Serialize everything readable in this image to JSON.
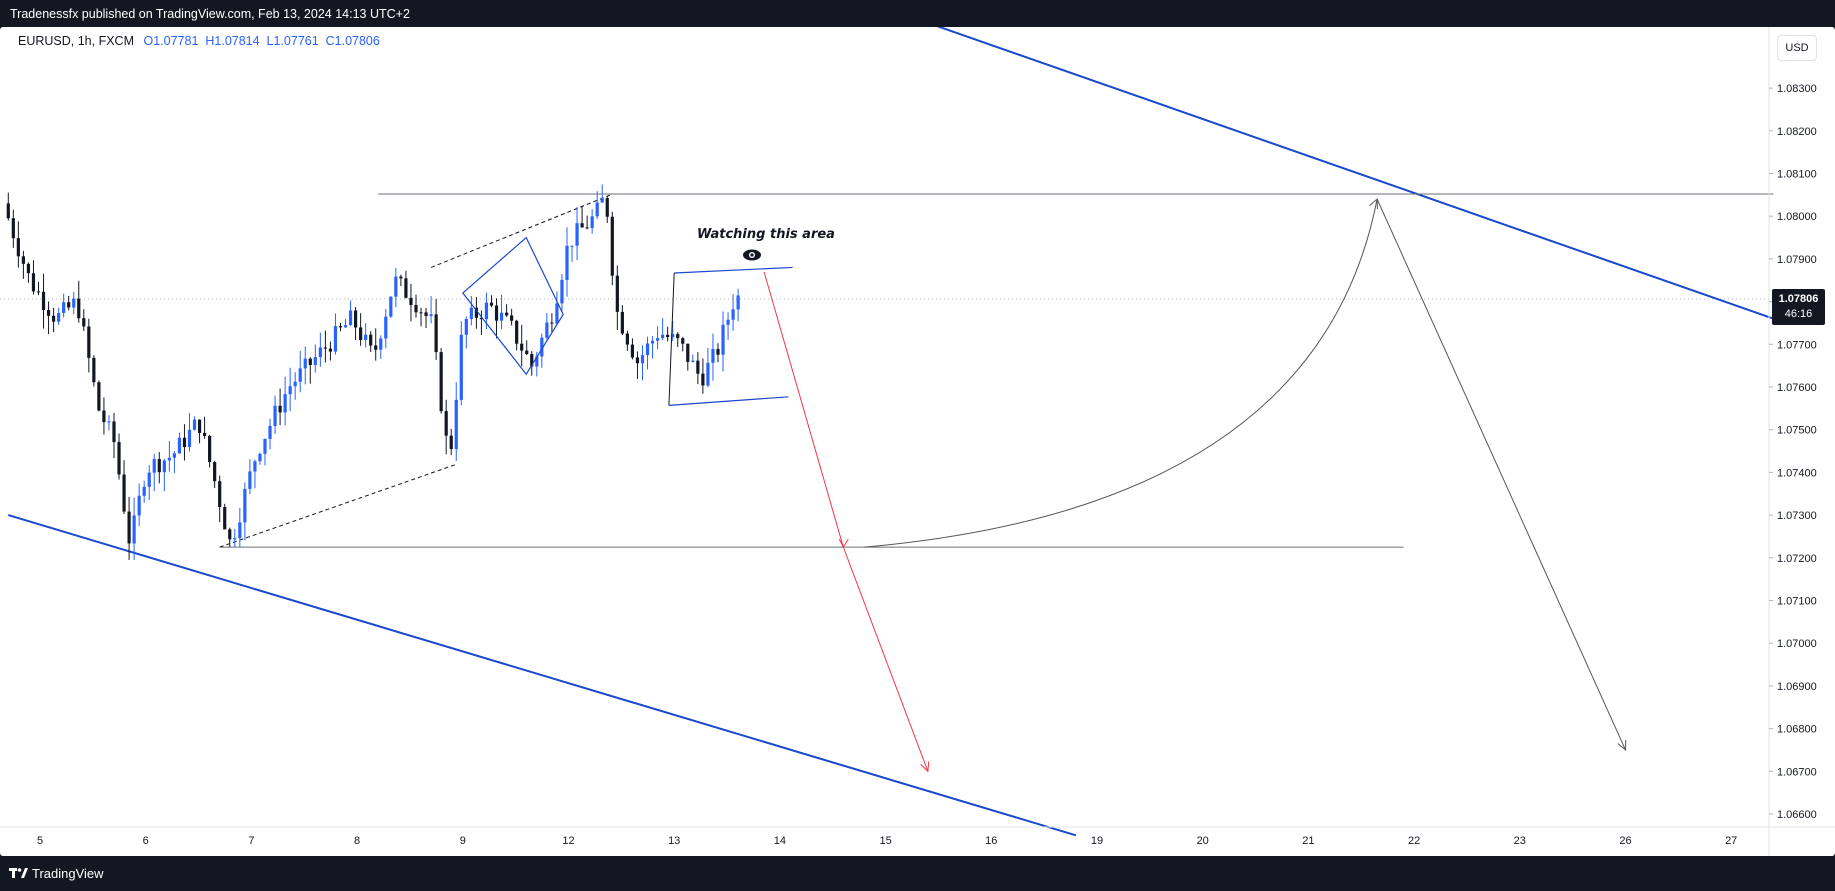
{
  "header": {
    "published": "Tradenessfx published on TradingView.com, Feb 13, 2024 14:13 UTC+2"
  },
  "legend": {
    "symbol": "EURUSD, 1h, FXCM",
    "open_label": "O",
    "open": "1.07781",
    "high_label": "H",
    "high": "1.07814",
    "low_label": "L",
    "low": "1.07761",
    "close_label": "C",
    "close": "1.07806"
  },
  "currency_button": "USD",
  "last_price": {
    "price": "1.07806",
    "countdown": "46:16"
  },
  "annotation": {
    "text": "Watching  this area",
    "icon": "eye-icon"
  },
  "footer": {
    "brand": "TradingView",
    "logo_icon": "tradingview-logo-icon"
  },
  "colors": {
    "up": "#2962ff",
    "down": "#131722",
    "trend_line": "#1848cc",
    "forecast_down": "#f23645",
    "forecast_path": "#555555",
    "background": "#131722"
  },
  "chart_data": {
    "type": "candlestick",
    "symbol": "EURUSD",
    "timeframe": "1h",
    "yaxis": {
      "ticks": [
        "1.08300",
        "1.08200",
        "1.08100",
        "1.08000",
        "1.07900",
        "1.07800",
        "1.07700",
        "1.07600",
        "1.07500",
        "1.07400",
        "1.07300",
        "1.07200",
        "1.07100",
        "1.07000",
        "1.06900",
        "1.06800",
        "1.06700",
        "1.06600"
      ],
      "range": [
        1.0655,
        1.0845
      ]
    },
    "xaxis": {
      "ticks": [
        {
          "label": "5",
          "day": 0
        },
        {
          "label": "6",
          "day": 1
        },
        {
          "label": "7",
          "day": 2
        },
        {
          "label": "8",
          "day": 3
        },
        {
          "label": "9",
          "day": 4
        },
        {
          "label": "12",
          "day": 5
        },
        {
          "label": "13",
          "day": 6
        },
        {
          "label": "14",
          "day": 7
        },
        {
          "label": "15",
          "day": 8
        },
        {
          "label": "16",
          "day": 9
        },
        {
          "label": "19",
          "day": 10
        },
        {
          "label": "20",
          "day": 11
        },
        {
          "label": "21",
          "day": 12
        },
        {
          "label": "22",
          "day": 13
        },
        {
          "label": "23",
          "day": 14
        },
        {
          "label": "26",
          "day": 15
        },
        {
          "label": "27",
          "day": 16
        }
      ]
    },
    "series": {
      "name": "EURUSD",
      "points": [
        {
          "day": -0.3,
          "price": 1.0803
        },
        {
          "day": -0.05,
          "price": 1.0785
        },
        {
          "day": 0.2,
          "price": 1.0776
        },
        {
          "day": 0.4,
          "price": 1.078
        },
        {
          "day": 0.6,
          "price": 1.0755
        },
        {
          "day": 0.75,
          "price": 1.0747
        },
        {
          "day": 0.9,
          "price": 1.0723
        },
        {
          "day": 1.05,
          "price": 1.0741
        },
        {
          "day": 1.3,
          "price": 1.0744
        },
        {
          "day": 1.55,
          "price": 1.0752
        },
        {
          "day": 1.7,
          "price": 1.0738
        },
        {
          "day": 1.85,
          "price": 1.0723
        },
        {
          "day": 2.1,
          "price": 1.0745
        },
        {
          "day": 2.4,
          "price": 1.076
        },
        {
          "day": 2.7,
          "price": 1.0768
        },
        {
          "day": 3.0,
          "price": 1.0776
        },
        {
          "day": 3.2,
          "price": 1.0767
        },
        {
          "day": 3.4,
          "price": 1.0785
        },
        {
          "day": 3.6,
          "price": 1.078
        },
        {
          "day": 3.75,
          "price": 1.0775
        },
        {
          "day": 3.85,
          "price": 1.0755
        },
        {
          "day": 3.92,
          "price": 1.0742
        },
        {
          "day": 4.05,
          "price": 1.0775
        },
        {
          "day": 4.3,
          "price": 1.0779
        },
        {
          "day": 4.5,
          "price": 1.0774
        },
        {
          "day": 4.7,
          "price": 1.0765
        },
        {
          "day": 4.9,
          "price": 1.0778
        },
        {
          "day": 5.05,
          "price": 1.0794
        },
        {
          "day": 5.3,
          "price": 1.08
        },
        {
          "day": 5.4,
          "price": 1.0805
        },
        {
          "day": 5.5,
          "price": 1.0778
        },
        {
          "day": 5.7,
          "price": 1.0766
        },
        {
          "day": 5.9,
          "price": 1.0773
        },
        {
          "day": 6.1,
          "price": 1.077
        },
        {
          "day": 6.3,
          "price": 1.0762
        },
        {
          "day": 6.45,
          "price": 1.0768
        },
        {
          "day": 6.62,
          "price": 1.0781
        }
      ]
    },
    "drawings": [
      {
        "type": "trendline",
        "name": "upper-channel-line",
        "from": {
          "day": 6.7,
          "price": 1.086
        },
        "to": {
          "day": 16.4,
          "price": 1.0776
        }
      },
      {
        "type": "trendline",
        "name": "lower-channel-line",
        "from": {
          "day": -0.3,
          "price": 1.073
        },
        "to": {
          "day": 9.8,
          "price": 1.0655
        }
      },
      {
        "type": "horizontal",
        "name": "resistance-line",
        "price": 1.08052,
        "from_day": 3.2,
        "to_day": 16.4
      },
      {
        "type": "horizontal",
        "name": "support-line",
        "price": 1.07225,
        "from_day": 1.7,
        "to_day": 12.9
      },
      {
        "type": "trendline",
        "name": "lower-dashed-line",
        "from": {
          "day": 1.7,
          "price": 1.07225
        },
        "to": {
          "day": 3.95,
          "price": 1.0742
        }
      },
      {
        "type": "trendline",
        "name": "upper-dashed-line",
        "from": {
          "day": 3.7,
          "price": 1.0788
        },
        "to": {
          "day": 5.4,
          "price": 1.0805
        }
      },
      {
        "type": "triangle",
        "name": "blue-triangle",
        "points": [
          {
            "day": 4.0,
            "price": 1.0782
          },
          {
            "day": 4.6,
            "price": 1.0795
          },
          {
            "day": 4.95,
            "price": 1.0777
          },
          {
            "day": 4.6,
            "price": 1.0763
          }
        ]
      },
      {
        "type": "rectangle",
        "name": "range-box",
        "top": {
          "from_day": 6.0,
          "price_from": 1.07867,
          "to_day": 7.12,
          "price_to": 1.0788
        },
        "bottom": {
          "from_day": 5.95,
          "price_from": 1.07557,
          "to_day": 7.08,
          "price_to": 1.07577
        }
      },
      {
        "type": "arrow",
        "name": "forecast-drop-arrow",
        "color": "red",
        "points": [
          {
            "day": 6.85,
            "price": 1.0787
          },
          {
            "day": 7.6,
            "price": 1.07225
          },
          {
            "day": 8.4,
            "price": 1.067
          }
        ]
      },
      {
        "type": "arrow",
        "name": "forecast-rally-arrow",
        "color": "grey",
        "points": [
          {
            "day": 7.8,
            "price": 1.07225
          },
          {
            "day": 12.65,
            "price": 1.0804
          }
        ]
      },
      {
        "type": "arrow",
        "name": "forecast-final-drop-arrow",
        "color": "grey",
        "points": [
          {
            "day": 12.65,
            "price": 1.0804
          },
          {
            "day": 15.0,
            "price": 1.0675
          }
        ]
      }
    ]
  }
}
